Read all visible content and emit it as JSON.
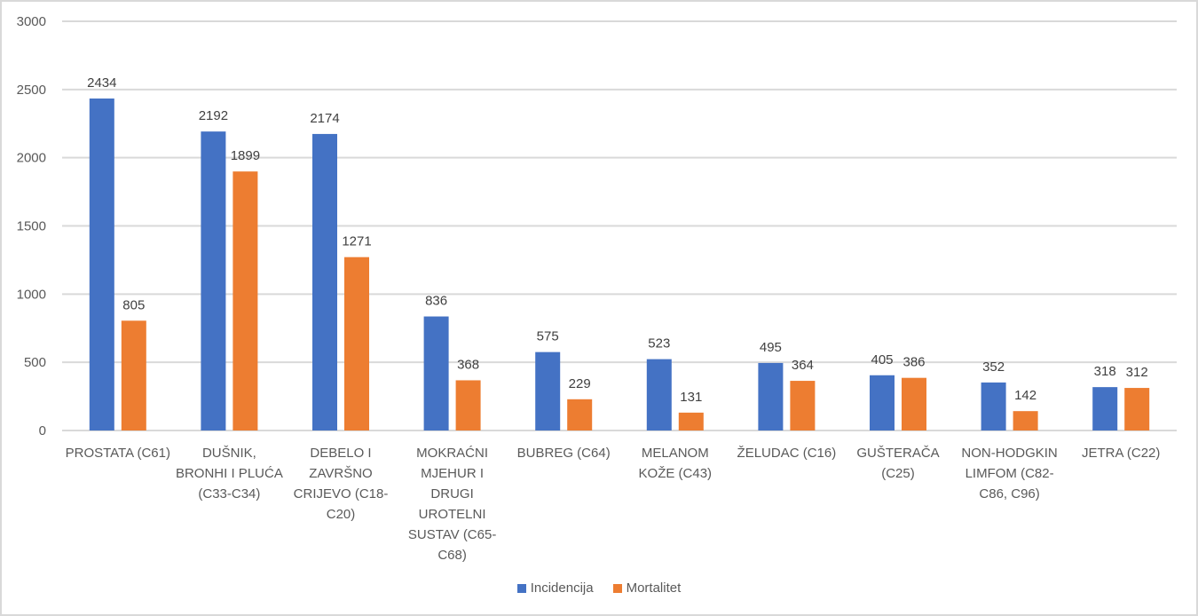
{
  "chart_data": {
    "type": "bar",
    "title": "",
    "xlabel": "",
    "ylabel": "",
    "ylim": [
      0,
      3000
    ],
    "yticks": [
      0,
      500,
      1000,
      1500,
      2000,
      2500,
      3000
    ],
    "grid": true,
    "legend_position": "bottom",
    "categories": [
      [
        "PROSTATA (C61)"
      ],
      [
        "DUŠNIK,",
        "BRONHI I PLUĆA",
        "(C33-C34)"
      ],
      [
        "DEBELO I",
        "ZAVRŠNO",
        "CRIJEVO (C18-",
        "C20)"
      ],
      [
        "MOKRAĆNI",
        "MJEHUR I",
        "DRUGI",
        "UROTELNI",
        "SUSTAV (C65-",
        "C68)"
      ],
      [
        "BUBREG (C64)"
      ],
      [
        "MELANOM",
        "KOŽE (C43)"
      ],
      [
        "ŽELUDAC (C16)"
      ],
      [
        "GUŠTERAČA",
        "(C25)"
      ],
      [
        "NON-HODGKIN",
        "LIMFOM (C82-",
        "C86, C96)"
      ],
      [
        "JETRA (C22)"
      ]
    ],
    "series": [
      {
        "name": "Incidencija",
        "color": "#4472c4",
        "values": [
          2434,
          2192,
          2174,
          836,
          575,
          523,
          495,
          405,
          352,
          318
        ]
      },
      {
        "name": "Mortalitet",
        "color": "#ed7d31",
        "values": [
          805,
          1899,
          1271,
          368,
          229,
          131,
          364,
          386,
          142,
          312
        ]
      }
    ]
  }
}
